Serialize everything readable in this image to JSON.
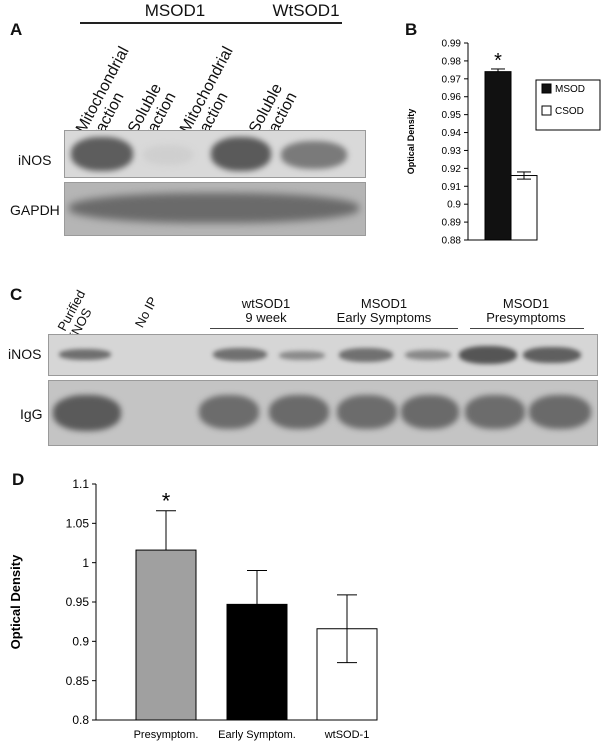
{
  "panel_a": {
    "letter": "A",
    "groups": [
      "MSOD1",
      "WtSOD1"
    ],
    "lanes": [
      "Mitochondrial\nfraction",
      "Soluble\nfraction",
      "Mitochondrial\nfraction",
      "Soluble\nfraction"
    ],
    "rows": [
      "iNOS",
      "GAPDH"
    ]
  },
  "panel_c": {
    "letter": "C",
    "lanes": [
      "Purified\niNOS",
      "No IP"
    ],
    "groups": [
      "wtSOD1\n9 week",
      "MSOD1\nEarly Symptoms",
      "MSOD1\nPresymptoms"
    ],
    "rows": [
      "iNOS",
      "IgG"
    ]
  },
  "chart_data": [
    {
      "panel": "B",
      "type": "bar",
      "categories": [
        "MSOD",
        "CSOD"
      ],
      "values": [
        0.974,
        0.916
      ],
      "errors": [
        0.0015,
        0.002
      ],
      "colors": [
        "#111111",
        "#ffffff"
      ],
      "ylabel": "Optical Density",
      "ylim": [
        0.88,
        0.99
      ],
      "yticks": [
        "0.88",
        "0.89",
        "0.9",
        "0.91",
        "0.92",
        "0.93",
        "0.94",
        "0.95",
        "0.96",
        "0.97",
        "0.98",
        "0.99"
      ],
      "significance": "*",
      "legend": [
        "MSOD",
        "CSOD"
      ],
      "legend_position": "right"
    },
    {
      "panel": "D",
      "type": "bar",
      "categories": [
        "Presymptom.",
        "Early Symptom.",
        "wtSOD-1"
      ],
      "values": [
        1.016,
        0.947,
        0.916
      ],
      "errors": [
        0.05,
        0.043,
        0.043
      ],
      "colors": [
        "#a0a0a0",
        "#000000",
        "#ffffff"
      ],
      "ylabel": "Optical Density",
      "ylim": [
        0.8,
        1.1
      ],
      "yticks": [
        "0.8",
        "0.85",
        "0.9",
        "0.95",
        "1",
        "1.05",
        "1.1"
      ],
      "significance": "*"
    }
  ]
}
